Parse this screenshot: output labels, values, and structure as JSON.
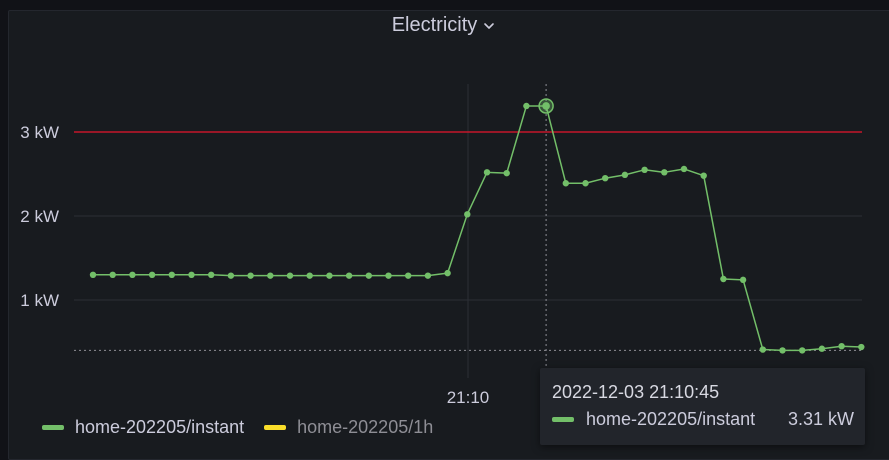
{
  "panel": {
    "title": "Electricity",
    "chevron_icon": "chevron-down-icon"
  },
  "chart_data": {
    "type": "line",
    "title": "Electricity",
    "unit": "kW",
    "x_tick_labels": [
      "21:10"
    ],
    "y_tick_labels": [
      "1 kW",
      "2 kW",
      "3 kW"
    ],
    "y_ticks": [
      1,
      2,
      3
    ],
    "ylim": [
      0.15,
      3.65
    ],
    "grid": true,
    "legend_placement": "bottom-left",
    "threshold": {
      "value": 3,
      "color": "#c4162a"
    },
    "hover_baseline": 0.4,
    "series": [
      {
        "name": "home-202205/instant",
        "color": "#73bf69",
        "values": [
          1.3,
          1.3,
          1.3,
          1.3,
          1.3,
          1.3,
          1.3,
          1.29,
          1.29,
          1.29,
          1.29,
          1.29,
          1.29,
          1.29,
          1.29,
          1.29,
          1.29,
          1.29,
          1.32,
          2.02,
          2.52,
          2.51,
          3.31,
          3.31,
          2.39,
          2.39,
          2.45,
          2.49,
          2.55,
          2.52,
          2.56,
          2.48,
          1.25,
          1.24,
          0.41,
          0.4,
          0.4,
          0.42,
          0.45,
          0.44
        ],
        "highlighted_index": 23
      },
      {
        "name": "home-202205/1h",
        "color": "#fade2a",
        "values": []
      }
    ]
  },
  "legend": {
    "items": [
      {
        "label": "home-202205/instant",
        "color": "#73bf69",
        "text_color": "#ccccdc"
      },
      {
        "label": "home-202205/1h",
        "color": "#fade2a",
        "text_color": "#8e8e95"
      }
    ]
  },
  "tooltip": {
    "time": "2022-12-03 21:10:45",
    "series": "home-202205/instant",
    "value": "3.31 kW",
    "color": "#73bf69"
  }
}
